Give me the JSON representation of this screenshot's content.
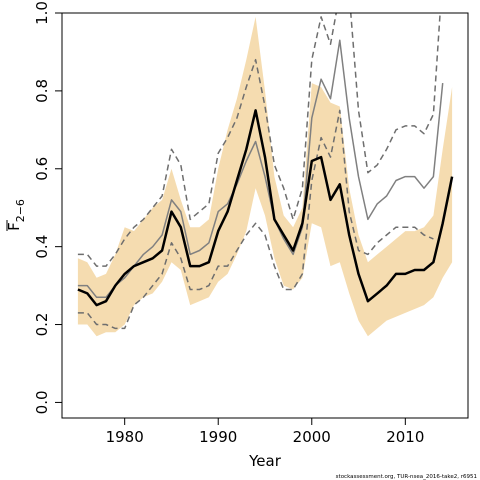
{
  "chart_data": {
    "type": "line",
    "title": "",
    "xlabel": "Year",
    "ylabel": "F",
    "ylabel_sub": "2−6",
    "xlim": [
      1973.3,
      2016.7
    ],
    "ylim": [
      -0.04,
      1.0
    ],
    "x_ticks": [
      1980,
      1990,
      2000,
      2010
    ],
    "x_tick_labels": [
      "1980",
      "1990",
      "2000",
      "2010"
    ],
    "y_ticks": [
      0.0,
      0.2,
      0.4,
      0.6,
      0.8,
      1.0
    ],
    "y_tick_labels": [
      "0.0",
      "0.2",
      "0.4",
      "0.6",
      "0.8",
      "1.0"
    ],
    "grid": false,
    "legend": "none",
    "colors": {
      "band": "#f5dcb0",
      "main_line": "#000000",
      "grey_line": "#808080",
      "dashed_line": "#6e6e6e",
      "axis": "#000000"
    },
    "x": [
      1975,
      1976,
      1977,
      1978,
      1979,
      1980,
      1981,
      1982,
      1983,
      1984,
      1985,
      1986,
      1987,
      1988,
      1989,
      1990,
      1991,
      1992,
      1993,
      1994,
      1995,
      1996,
      1997,
      1998,
      1999,
      2000,
      2001,
      2002,
      2003,
      2004,
      2005,
      2006,
      2007,
      2008,
      2009,
      2010,
      2011,
      2012,
      2013,
      2014,
      2015
    ],
    "series": [
      {
        "role": "confidence-band-upper",
        "values": [
          0.37,
          0.36,
          0.32,
          0.33,
          0.38,
          0.45,
          0.44,
          0.47,
          0.5,
          0.52,
          0.6,
          0.52,
          0.45,
          0.45,
          0.47,
          0.6,
          0.7,
          0.78,
          0.88,
          0.99,
          0.8,
          0.58,
          0.48,
          0.45,
          0.5,
          0.82,
          0.81,
          0.77,
          0.76,
          0.55,
          0.43,
          0.36,
          0.38,
          0.4,
          0.42,
          0.44,
          0.44,
          0.45,
          0.48,
          0.65,
          0.81
        ]
      },
      {
        "role": "confidence-band-lower",
        "values": [
          0.2,
          0.2,
          0.17,
          0.18,
          0.18,
          0.2,
          0.25,
          0.27,
          0.28,
          0.31,
          0.36,
          0.34,
          0.25,
          0.26,
          0.27,
          0.31,
          0.33,
          0.38,
          0.44,
          0.55,
          0.48,
          0.37,
          0.3,
          0.29,
          0.32,
          0.46,
          0.45,
          0.35,
          0.36,
          0.28,
          0.21,
          0.17,
          0.19,
          0.21,
          0.22,
          0.23,
          0.24,
          0.25,
          0.27,
          0.32,
          0.36
        ]
      },
      {
        "role": "main-estimate",
        "values": [
          0.29,
          0.28,
          0.25,
          0.26,
          0.3,
          0.33,
          0.35,
          0.36,
          0.37,
          0.39,
          0.49,
          0.45,
          0.35,
          0.35,
          0.36,
          0.44,
          0.49,
          0.57,
          0.65,
          0.75,
          0.63,
          0.47,
          0.43,
          0.39,
          0.46,
          0.62,
          0.63,
          0.52,
          0.56,
          0.43,
          0.33,
          0.26,
          0.28,
          0.3,
          0.33,
          0.33,
          0.34,
          0.34,
          0.36,
          0.46,
          0.58
        ]
      },
      {
        "role": "alternative-estimate",
        "values": [
          0.3,
          0.3,
          0.27,
          0.27,
          0.3,
          0.32,
          0.35,
          0.38,
          0.4,
          0.43,
          0.52,
          0.49,
          0.38,
          0.39,
          0.41,
          0.49,
          0.51,
          0.56,
          0.62,
          0.67,
          0.58,
          0.47,
          0.42,
          0.38,
          0.45,
          0.73,
          0.83,
          0.78,
          0.93,
          0.73,
          0.58,
          0.47,
          0.51,
          0.53,
          0.57,
          0.58,
          0.58,
          0.55,
          0.58,
          0.82,
          null
        ]
      },
      {
        "role": "alternative-upper",
        "values": [
          0.38,
          0.38,
          0.35,
          0.35,
          0.38,
          0.42,
          0.45,
          0.47,
          0.5,
          0.53,
          0.65,
          0.61,
          0.47,
          0.49,
          0.51,
          0.64,
          0.68,
          0.73,
          0.81,
          0.88,
          0.76,
          0.61,
          0.55,
          0.47,
          0.55,
          0.88,
          0.99,
          0.92,
          1.05,
          1.05,
          0.75,
          0.59,
          0.61,
          0.65,
          0.7,
          0.71,
          0.71,
          0.69,
          0.74,
          1.1,
          null
        ]
      },
      {
        "role": "alternative-lower",
        "values": [
          0.23,
          0.23,
          0.2,
          0.2,
          0.19,
          0.19,
          0.25,
          0.27,
          0.3,
          0.33,
          0.41,
          0.37,
          0.29,
          0.29,
          0.3,
          0.35,
          0.35,
          0.39,
          0.43,
          0.46,
          0.43,
          0.35,
          0.29,
          0.29,
          0.33,
          0.57,
          0.68,
          0.63,
          0.75,
          0.49,
          0.39,
          0.38,
          0.41,
          0.43,
          0.45,
          0.45,
          0.45,
          0.43,
          0.42,
          null,
          null
        ]
      }
    ],
    "credit": "stockassessment.org, TUR-nsea_2016-take2, r6951"
  }
}
